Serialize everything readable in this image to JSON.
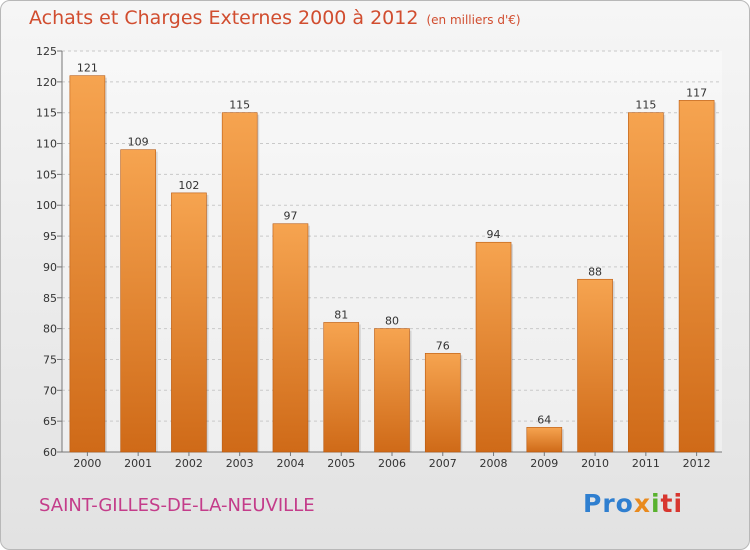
{
  "header": {
    "title": "Achats et Charges Externes 2000 à 2012",
    "unit": "(en milliers d'€)"
  },
  "footer": {
    "city": "SAINT-GILLES-DE-LA-NEUVILLE",
    "logo_icon": "proxiti-logo",
    "logo_parts": [
      "Pro",
      "x",
      "i",
      "ti"
    ]
  },
  "colors": {
    "bar_top": "#f6a450",
    "bar_bottom": "#cf6a18",
    "title": "#d14d2f",
    "city": "#c43c8a"
  },
  "chart_data": {
    "type": "bar",
    "title": "Achats et Charges Externes 2000 à 2012",
    "subtitle": "(en milliers d'€)",
    "xlabel": "",
    "ylabel": "",
    "categories": [
      "2000",
      "2001",
      "2002",
      "2003",
      "2004",
      "2005",
      "2006",
      "2007",
      "2008",
      "2009",
      "2010",
      "2011",
      "2012"
    ],
    "values": [
      121,
      109,
      102,
      115,
      97,
      81,
      80,
      76,
      94,
      64,
      88,
      115,
      117
    ],
    "ylim": [
      60,
      125
    ],
    "yticks": [
      60,
      65,
      70,
      75,
      80,
      85,
      90,
      95,
      100,
      105,
      110,
      115,
      120,
      125
    ],
    "grid": "horizontal dashed",
    "legend": "none"
  }
}
